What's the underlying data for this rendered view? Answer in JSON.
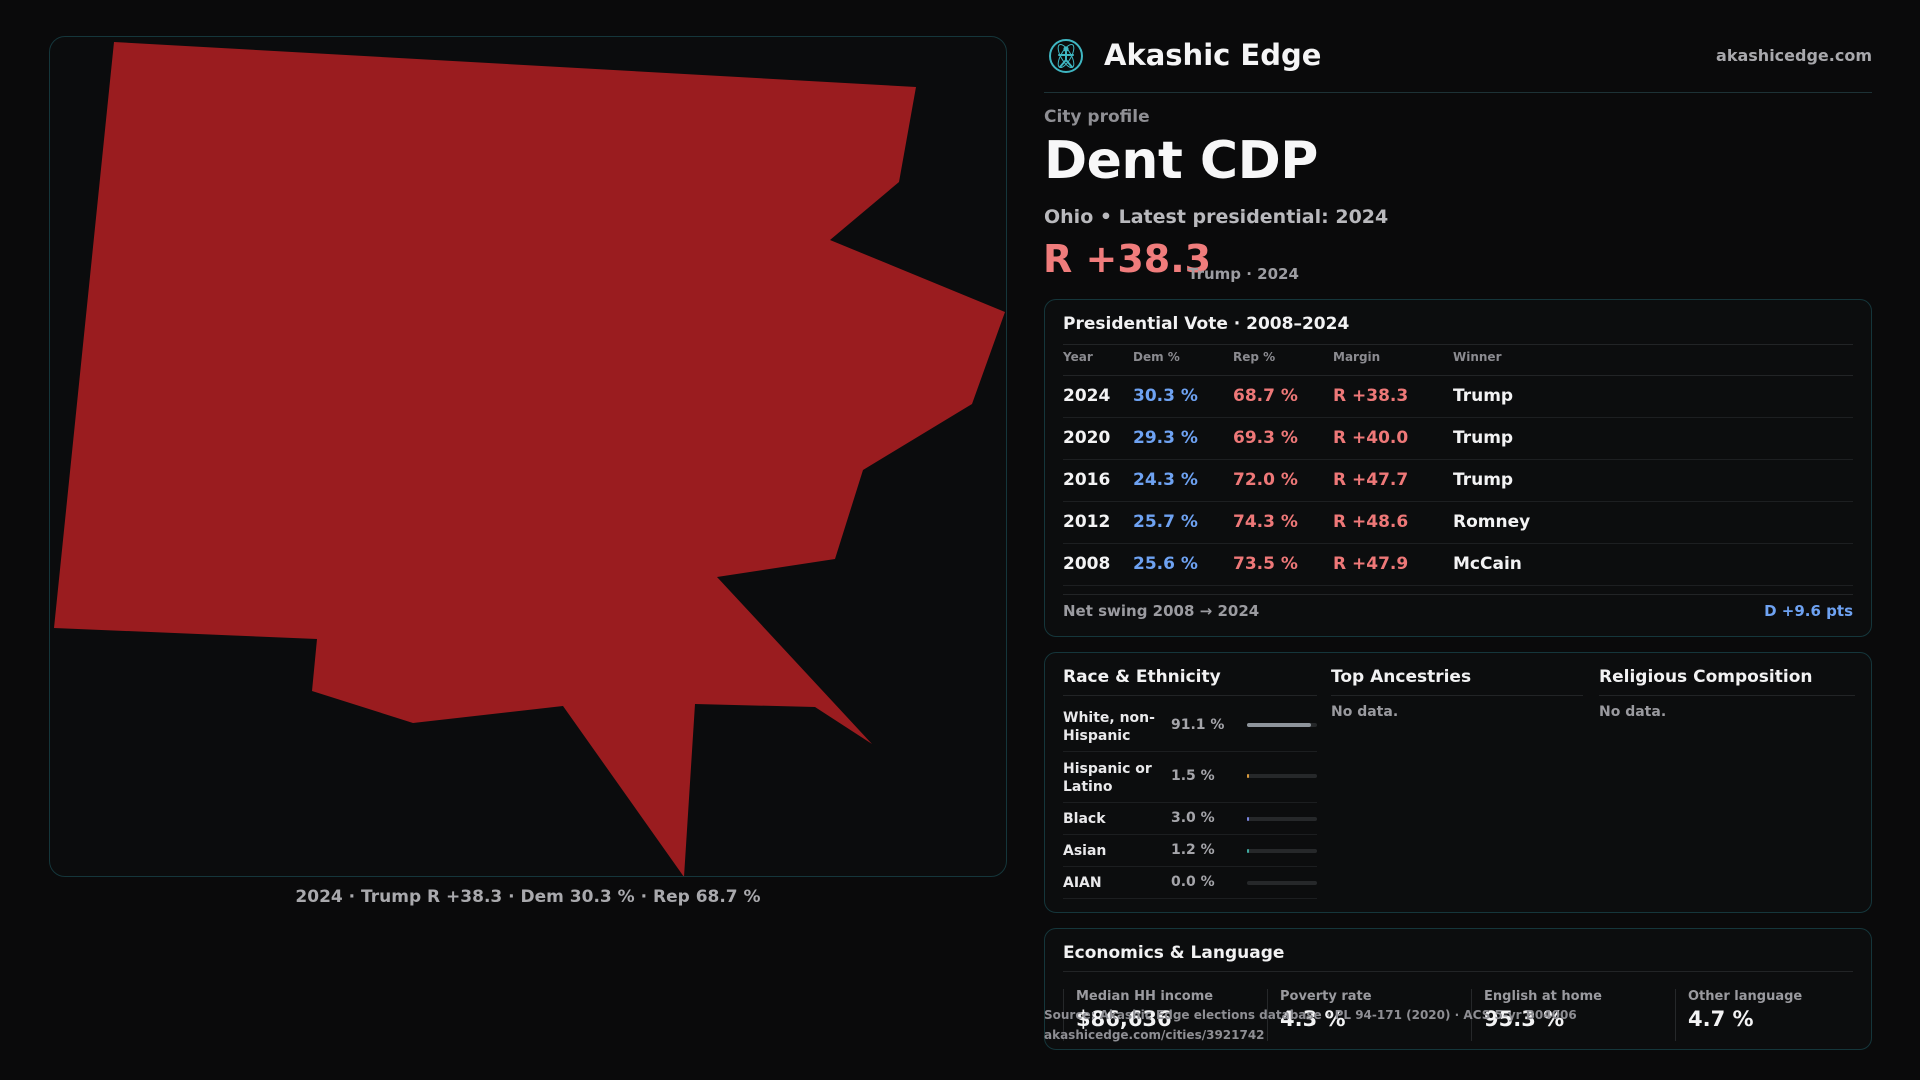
{
  "map": {
    "fill_color": "#9a1c1f",
    "caption": "2024 · Trump R +38.3 · Dem 30.3 % · Rep 68.7 %"
  },
  "header": {
    "brand": "Akashic Edge",
    "site": "akashicedge.com",
    "logo_icon": "atom-figure-icon",
    "accent": "#3fb6c2"
  },
  "profile": {
    "kicker": "City profile",
    "name": "Dent CDP",
    "subline": "Ohio • Latest presidential: 2024",
    "margin": "R +38.3",
    "margin_note": "Trump · 2024"
  },
  "vote": {
    "title": "Presidential Vote · 2008–2024",
    "headers": [
      "Year",
      "Dem %",
      "Rep %",
      "Margin",
      "Winner"
    ],
    "rows": [
      {
        "year": "2024",
        "dem": "30.3 %",
        "rep": "68.7 %",
        "margin": "R +38.3",
        "winner": "Trump"
      },
      {
        "year": "2020",
        "dem": "29.3 %",
        "rep": "69.3 %",
        "margin": "R +40.0",
        "winner": "Trump"
      },
      {
        "year": "2016",
        "dem": "24.3 %",
        "rep": "72.0 %",
        "margin": "R +47.7",
        "winner": "Trump"
      },
      {
        "year": "2012",
        "dem": "25.7 %",
        "rep": "74.3 %",
        "margin": "R +48.6",
        "winner": "Romney"
      },
      {
        "year": "2008",
        "dem": "25.6 %",
        "rep": "73.5 %",
        "margin": "R +47.9",
        "winner": "McCain"
      }
    ],
    "swing_label": "Net swing 2008 → 2024",
    "swing_value": "D +9.6 pts"
  },
  "demographics": {
    "race_title": "Race & Ethnicity",
    "race": [
      {
        "name": "White, non-Hispanic",
        "pct": "91.1 %",
        "value": 91.1,
        "color": "#8e949b"
      },
      {
        "name": "Hispanic or Latino",
        "pct": "1.5 %",
        "value": 1.5,
        "color": "#d99a3c"
      },
      {
        "name": "Black",
        "pct": "3.0 %",
        "value": 3.0,
        "color": "#7a84e0"
      },
      {
        "name": "Asian",
        "pct": "1.2 %",
        "value": 1.2,
        "color": "#3fa9a0"
      },
      {
        "name": "AIAN",
        "pct": "0.0 %",
        "value": 0.0,
        "color": "#c06a6a"
      }
    ],
    "ancestry_title": "Top Ancestries",
    "ancestry_empty": "No data.",
    "religion_title": "Religious Composition",
    "religion_empty": "No data."
  },
  "economics": {
    "title": "Economics & Language",
    "items": [
      {
        "label": "Median HH income",
        "value": "$86,636"
      },
      {
        "label": "Poverty rate",
        "value": "4.3 %"
      },
      {
        "label": "English at home",
        "value": "95.3 %"
      },
      {
        "label": "Other language",
        "value": "4.7 %"
      }
    ]
  },
  "footer": {
    "source": "Source: Akashic Edge elections database · PL 94-171 (2020) · ACS 5-yr B04006",
    "url": "akashicedge.com/cities/3921742"
  }
}
